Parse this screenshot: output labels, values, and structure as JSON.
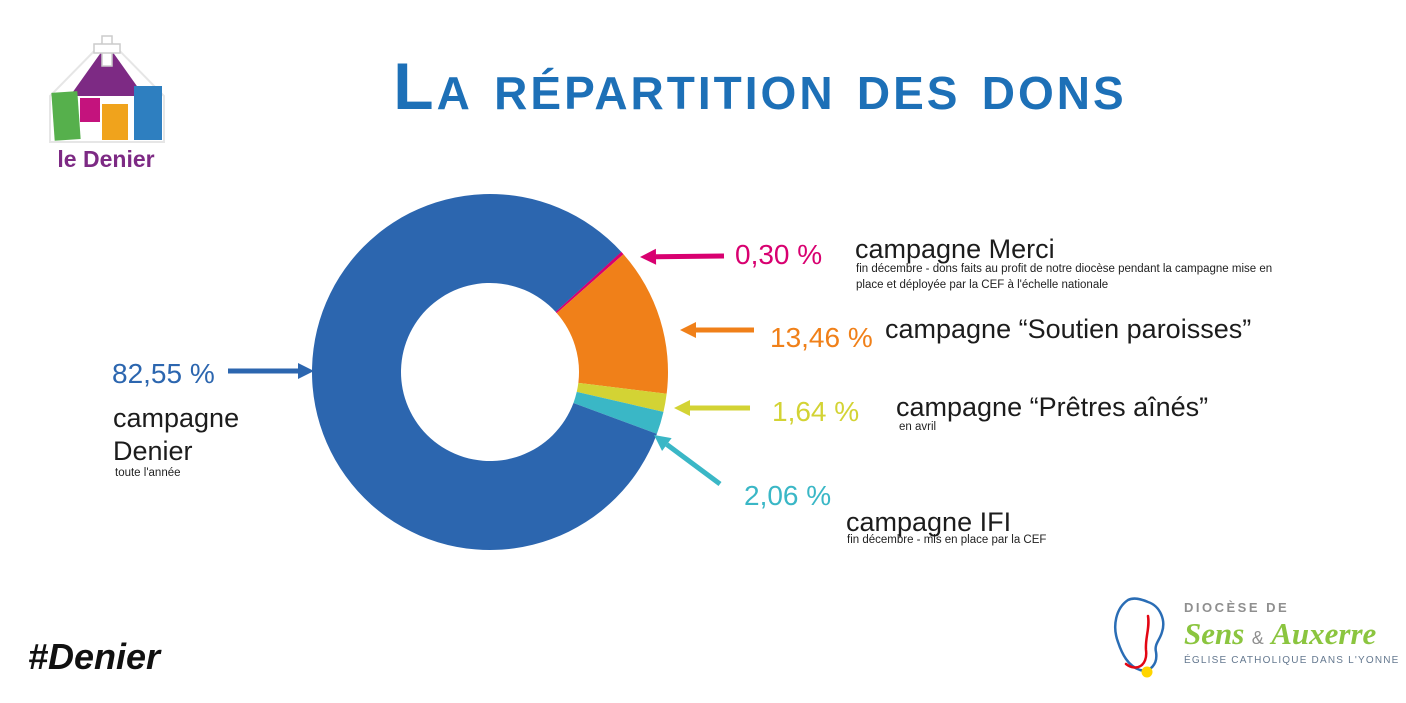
{
  "brand": {
    "logo_text": "le Denier",
    "logo_color": "#7d2a84"
  },
  "header": {
    "title": "La répartition des dons",
    "title_color": "#1d70b7"
  },
  "hashtag": "#Denier",
  "footer_logo": {
    "top_line": "DIOCÈSE DE",
    "name_left": "Sens",
    "ampersand": "&",
    "name_right": "Auxerre",
    "bottom_line": "ÉGLISE CATHOLIQUE DANS L'YONNE",
    "green": "#8bc53f"
  },
  "chart_data": {
    "type": "pie",
    "donut": true,
    "title": "La répartition des dons",
    "start_angle_deg": 47.5,
    "unit": "%",
    "legend_position": "around",
    "segments": [
      {
        "label": "campagne Merci",
        "value": 0.3,
        "value_label": "0,30 %",
        "color": "#d80070",
        "note": "fin décembre - dons faits au profit de notre diocèse pendant la campagne mise en place et déployée par la CEF à l'échelle nationale"
      },
      {
        "label": "campagne “Soutien paroisses”",
        "value": 13.46,
        "value_label": "13,46 %",
        "color": "#f08019",
        "note": ""
      },
      {
        "label": "campagne “Prêtres aînés”",
        "value": 1.64,
        "value_label": "1,64 %",
        "color": "#d3d334",
        "note": "en avril"
      },
      {
        "label": "campagne IFI",
        "value": 2.06,
        "value_label": "2,06 %",
        "color": "#3ab7c6",
        "note": "fin décembre - mis en place par la CEF"
      },
      {
        "label": "campagne Denier",
        "value": 82.55,
        "value_label": "82,55 %",
        "color": "#2c66af",
        "note": "toute l'année"
      }
    ]
  }
}
